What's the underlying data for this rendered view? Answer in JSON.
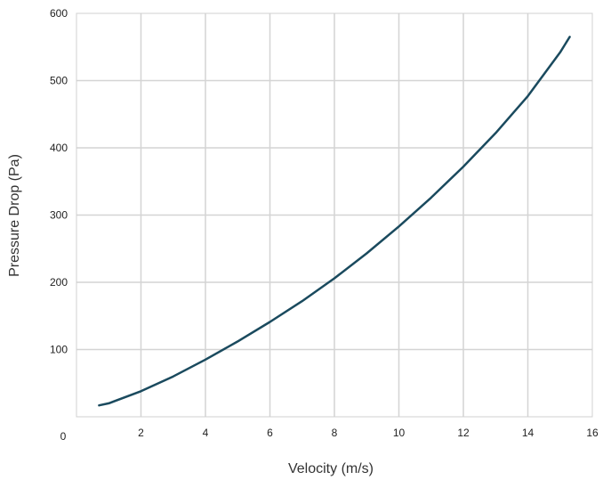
{
  "chart_data": {
    "type": "line",
    "title": "",
    "xlabel": "Velocity (m/s)",
    "ylabel": "Pressure Drop (Pa)",
    "xlim": [
      0,
      16
    ],
    "ylim": [
      0,
      600
    ],
    "x_ticks": [
      2,
      4,
      6,
      8,
      10,
      12,
      14,
      16
    ],
    "y_ticks": [
      100,
      200,
      300,
      400,
      500,
      600
    ],
    "origin_label": "0",
    "grid": true,
    "line_color": "#1a4a5e",
    "series": [
      {
        "x": [
          0.7,
          1.0,
          2.0,
          3.0,
          4.0,
          5.0,
          6.0,
          7.0,
          8.0,
          9.0,
          10.0,
          11.0,
          12.0,
          13.0,
          14.0,
          15.0,
          15.3
        ],
        "y": [
          17,
          20,
          38,
          60,
          85,
          112,
          141,
          172,
          206,
          243,
          283,
          326,
          372,
          422,
          477,
          542,
          565
        ]
      }
    ]
  }
}
